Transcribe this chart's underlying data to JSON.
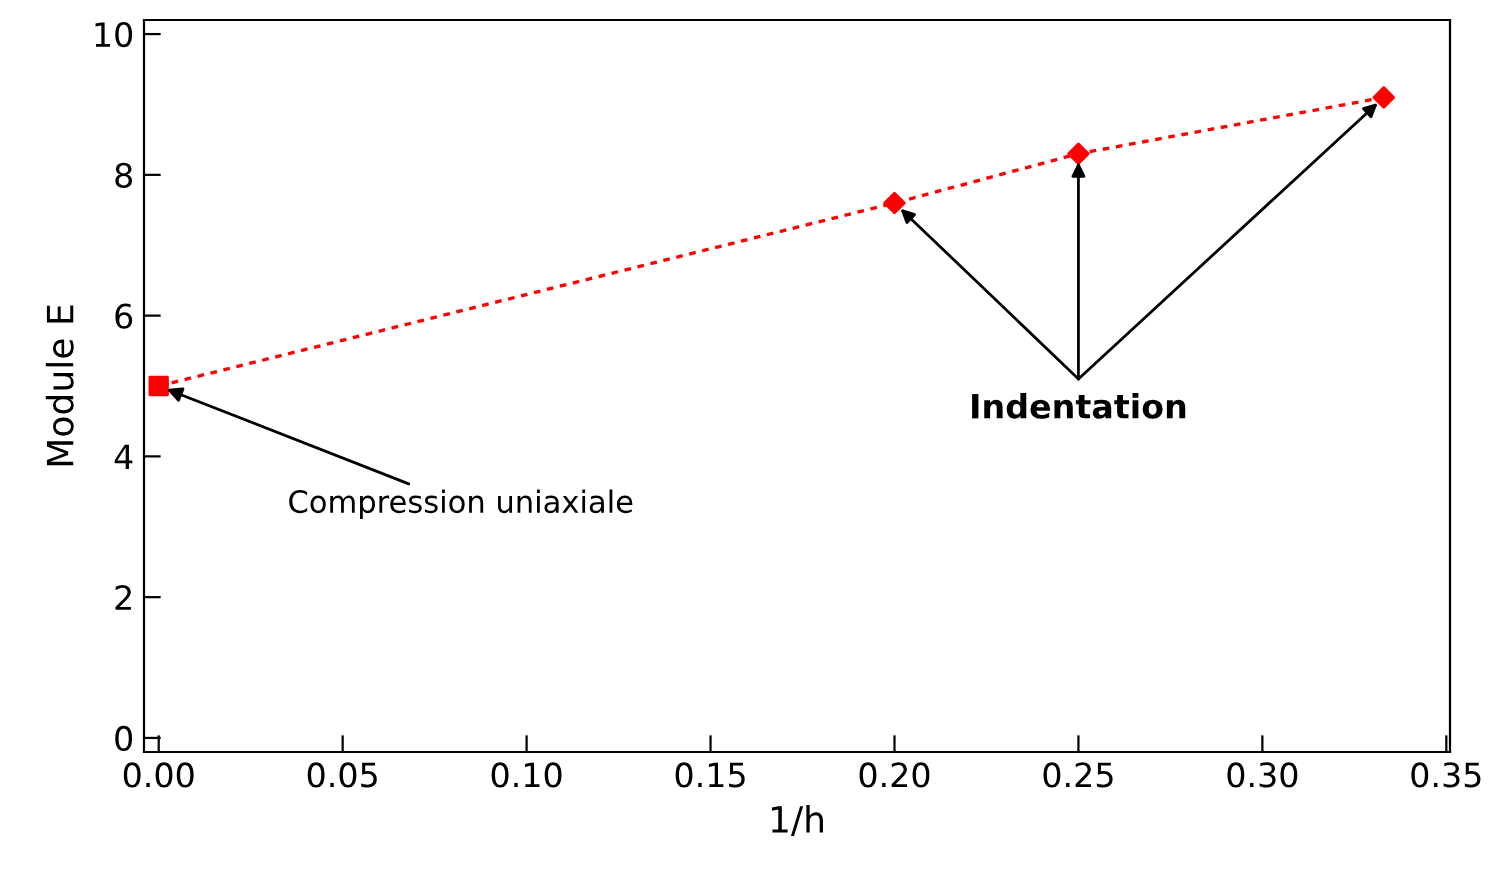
{
  "chart_data": {
    "type": "line",
    "xlabel": "1/h",
    "ylabel": "Module E",
    "series": [
      {
        "color": "#ff0000",
        "x": [
          0,
          0.2,
          0.25,
          0.333
        ],
        "values": [
          5.0,
          7.6,
          8.3,
          9.1
        ],
        "line_style": "dashed",
        "marker": "none"
      },
      {
        "type": "scatter",
        "color": "#ff0000",
        "x": [
          0
        ],
        "values": [
          5.0
        ],
        "marker": "square"
      },
      {
        "type": "scatter",
        "color": "#ff0000",
        "x": [
          0.2,
          0.25,
          0.333
        ],
        "values": [
          7.6,
          8.3,
          9.1
        ],
        "marker": "diamond"
      }
    ],
    "annotations": [
      {
        "text": "Compression uniaxiale",
        "x": 0,
        "y": 5.0
      },
      {
        "text": "Indentation",
        "x": 0.25,
        "y": 8.3
      }
    ],
    "xlim": [
      -0.004,
      0.351
    ],
    "ylim": [
      -0.2,
      10.2
    ],
    "xticks": [
      {
        "value": 0,
        "label": "0.00"
      },
      {
        "value": 0.05,
        "label": "0.05"
      },
      {
        "value": 0.1,
        "label": "0.10"
      },
      {
        "value": 0.15,
        "label": "0.15"
      },
      {
        "value": 0.2,
        "label": "0.20"
      },
      {
        "value": 0.25,
        "label": "0.25"
      },
      {
        "value": 0.3,
        "label": "0.30"
      },
      {
        "value": 0.35,
        "label": "0.35"
      }
    ],
    "yticks": [
      0,
      2,
      4,
      6,
      8,
      10
    ],
    "grid": false,
    "legend": false
  }
}
